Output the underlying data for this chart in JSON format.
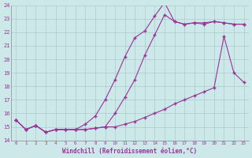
{
  "title": "",
  "xlabel": "Windchill (Refroidissement éolien,°C)",
  "ylabel": "",
  "bg_color": "#cce8e8",
  "line_color": "#993399",
  "grid_color": "#aacccc",
  "xlim": [
    -0.5,
    23.5
  ],
  "ylim": [
    14,
    24
  ],
  "yticks": [
    14,
    15,
    16,
    17,
    18,
    19,
    20,
    21,
    22,
    23,
    24
  ],
  "xticks": [
    0,
    1,
    2,
    3,
    4,
    5,
    6,
    7,
    8,
    9,
    10,
    11,
    12,
    13,
    14,
    15,
    16,
    17,
    18,
    19,
    20,
    21,
    22,
    23
  ],
  "line1_x": [
    0,
    1,
    2,
    3,
    4,
    5,
    6,
    7,
    8,
    9,
    10,
    11,
    12,
    13,
    14,
    15,
    16,
    17,
    18,
    19,
    20,
    21,
    22,
    23
  ],
  "line1_y": [
    15.5,
    14.8,
    15.1,
    14.6,
    14.8,
    14.8,
    14.8,
    14.8,
    14.9,
    15.0,
    16.0,
    17.2,
    18.5,
    20.3,
    21.8,
    23.3,
    22.8,
    22.6,
    22.7,
    22.6,
    22.8,
    22.7,
    22.6,
    22.6
  ],
  "line2_x": [
    0,
    1,
    2,
    3,
    4,
    5,
    6,
    7,
    8,
    9,
    10,
    11,
    12,
    13,
    14,
    15,
    16,
    17,
    18,
    19,
    20,
    21,
    22,
    23
  ],
  "line2_y": [
    15.5,
    14.8,
    15.1,
    14.6,
    14.8,
    14.8,
    14.8,
    15.2,
    15.8,
    17.0,
    18.5,
    20.2,
    21.6,
    22.1,
    23.2,
    24.2,
    22.8,
    22.6,
    22.7,
    22.7,
    22.8,
    22.7,
    22.6,
    22.6
  ],
  "line3_x": [
    0,
    1,
    2,
    3,
    4,
    5,
    6,
    7,
    8,
    9,
    10,
    11,
    12,
    13,
    14,
    15,
    16,
    17,
    18,
    19,
    20,
    21,
    22,
    23
  ],
  "line3_y": [
    15.5,
    14.8,
    15.1,
    14.6,
    14.8,
    14.8,
    14.8,
    14.8,
    14.9,
    15.0,
    15.0,
    15.2,
    15.4,
    15.7,
    16.0,
    16.3,
    16.7,
    17.0,
    17.3,
    17.6,
    17.9,
    21.7,
    19.0,
    18.3
  ]
}
